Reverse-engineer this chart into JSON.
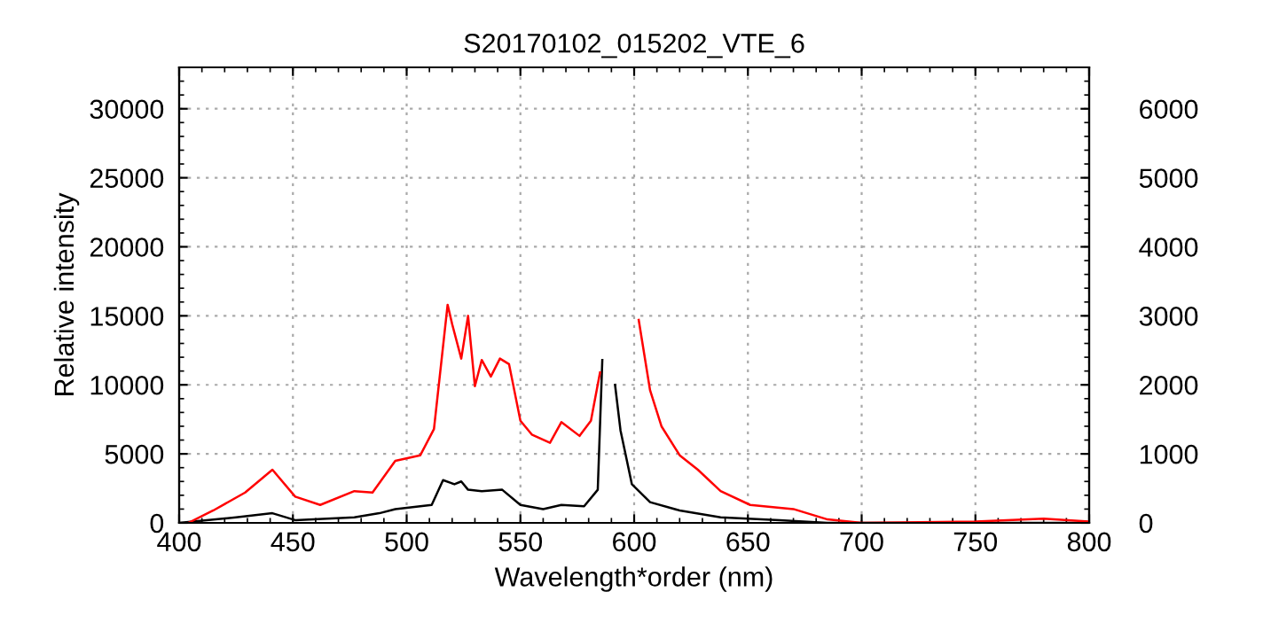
{
  "chart_data": {
    "type": "line",
    "title": "S20170102_015202_VTE_6",
    "xlabel": "Wavelength*order (nm)",
    "ylabel": "Relative intensity",
    "xlim": [
      400,
      800
    ],
    "xticks": [
      400,
      450,
      500,
      550,
      600,
      650,
      700,
      750,
      800
    ],
    "ylim": [
      0,
      33000
    ],
    "yticks": [
      0,
      5000,
      10000,
      15000,
      20000,
      25000,
      30000
    ],
    "y2lim": [
      0,
      6600
    ],
    "y2ticks": [
      0,
      1000,
      2000,
      3000,
      4000,
      5000,
      6000
    ],
    "grid": true,
    "legend": false,
    "line_style": "solid",
    "marker": "none",
    "series": [
      {
        "color": "#000000",
        "x": [
          400,
          425,
          441,
          451,
          477,
          488,
          495,
          511,
          516,
          521,
          524,
          527,
          533,
          542,
          550,
          560,
          568,
          578,
          584,
          586,
          587.7,
          590.5,
          591.6,
          594,
          599,
          607,
          620,
          638,
          664,
          685,
          700,
          750,
          800
        ],
        "values": [
          0,
          400,
          700,
          200,
          400,
          700,
          1000,
          1300,
          3100,
          2800,
          3000,
          2400,
          2300,
          2400,
          1300,
          1000,
          1300,
          1200,
          2400,
          11800,
          null,
          null,
          10000,
          6700,
          2800,
          1500,
          900,
          400,
          200,
          0,
          0,
          0,
          0
        ]
      },
      {
        "color": "#ff0000",
        "axis": "y2",
        "x": [
          404,
          415,
          429,
          441,
          451,
          462,
          477,
          485,
          495,
          506,
          512,
          518,
          520,
          524,
          527,
          530,
          533,
          537,
          541,
          545,
          550,
          555,
          563,
          568,
          576,
          581,
          585,
          586.5,
          596,
          602,
          607,
          612,
          620,
          628,
          638,
          651,
          670,
          685,
          700,
          750,
          780,
          800
        ],
        "values": [
          0,
          180,
          440,
          770,
          380,
          260,
          460,
          440,
          900,
          980,
          1360,
          3160,
          2880,
          2380,
          3000,
          1980,
          2360,
          2120,
          2380,
          2300,
          1480,
          1280,
          1160,
          1460,
          1260,
          1480,
          2180,
          null,
          null,
          2940,
          1920,
          1400,
          980,
          770,
          460,
          260,
          200,
          50,
          0,
          20,
          60,
          20
        ]
      }
    ]
  }
}
